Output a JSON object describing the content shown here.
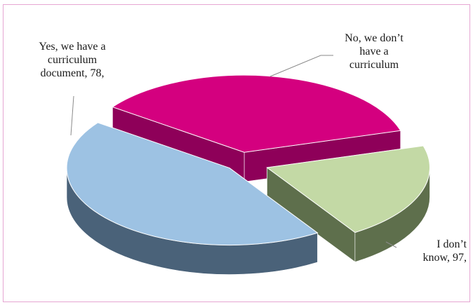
{
  "chart_data": {
    "type": "pie",
    "title": "",
    "slices": [
      {
        "label": "Yes, we have a curriculum document",
        "value": 78,
        "color": "#d4007f",
        "side_color": "#8e0059"
      },
      {
        "label": "No, we don’t have a curriculum",
        "value": 45,
        "color": "#c3d9a5",
        "side_color": "#5e6f4c"
      },
      {
        "label": "I don’t know",
        "value": 97,
        "color": "#9dc2e3",
        "side_color": "#4a6279"
      }
    ],
    "labels": {
      "yes": "Yes, we have a\ncurriculum\ndocument, 78,",
      "no": "No, we don’t\nhave a\ncurriculum",
      "idk": "I don’t\nknow, 97,"
    },
    "legend": "none",
    "style": "3d-exploded"
  }
}
